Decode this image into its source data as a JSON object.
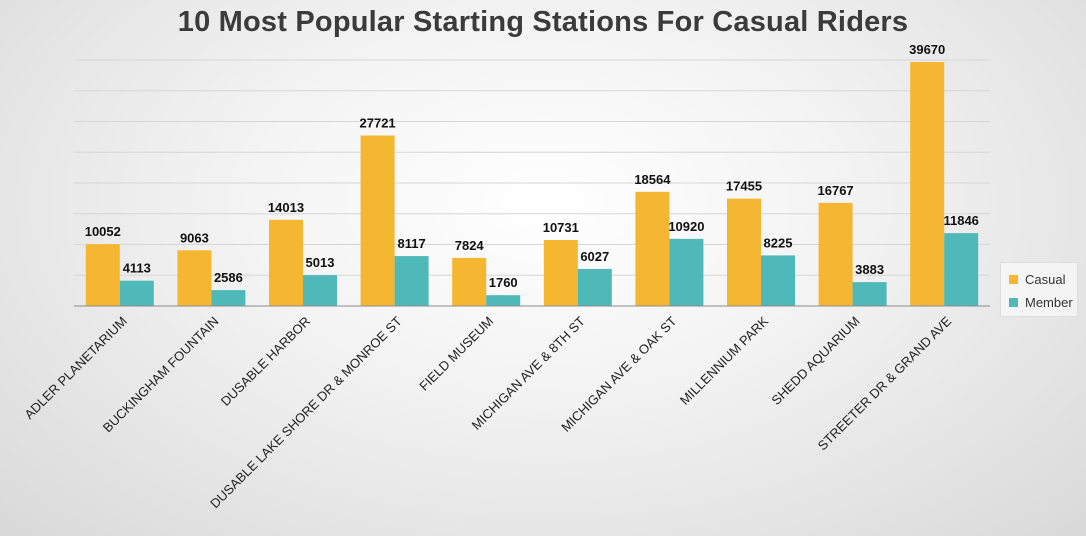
{
  "chart_data": {
    "type": "bar",
    "title": "10 Most Popular Starting Stations For Casual Riders",
    "xlabel": "",
    "ylabel": "",
    "ylim": [
      0,
      40000
    ],
    "grid": true,
    "legend_position": "right",
    "categories": [
      "ADLER PLANETARIUM",
      "BUCKINGHAM FOUNTAIN",
      "DUSABLE HARBOR",
      "DUSABLE LAKE SHORE DR & MONROE ST",
      "FIELD MUSEUM",
      "MICHIGAN AVE & 8TH ST",
      "MICHIGAN AVE & OAK ST",
      "MILLENNIUM PARK",
      "SHEDD AQUARIUM",
      "STREETER DR & GRAND AVE"
    ],
    "series": [
      {
        "name": "Casual",
        "color": "#f5b731",
        "values": [
          10052,
          9063,
          14013,
          27721,
          7824,
          10731,
          18564,
          17455,
          16767,
          39670
        ]
      },
      {
        "name": "Member",
        "color": "#4fb8b8",
        "values": [
          4113,
          2586,
          5013,
          8117,
          1760,
          6027,
          10920,
          8225,
          3883,
          11846
        ]
      }
    ]
  }
}
